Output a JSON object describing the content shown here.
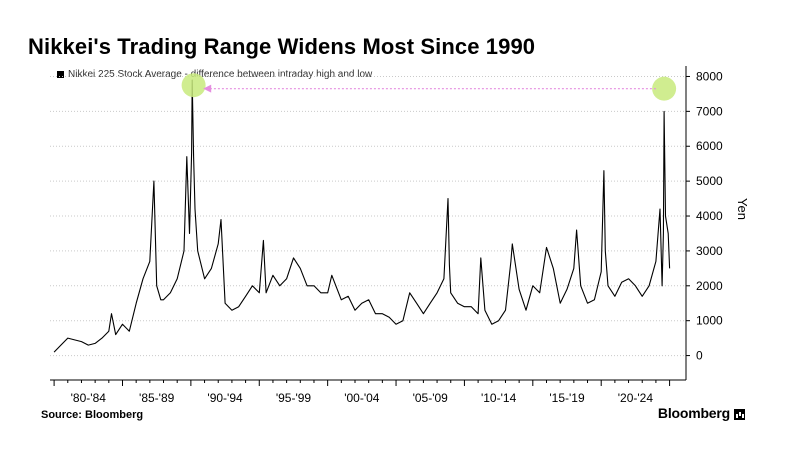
{
  "chart_data": {
    "type": "line",
    "title": "Nikkei's Trading Range Widens Most Since 1990",
    "legend": "Nikkei 225 Stock Average - difference between intraday high and low",
    "ylabel": "Yen",
    "ylim": [
      -700,
      8300
    ],
    "xlim": [
      1979.7,
      2026.2
    ],
    "yticks": [
      0,
      1000,
      2000,
      3000,
      4000,
      5000,
      6000,
      7000,
      8000
    ],
    "xtick_labels": [
      "'80-'84",
      "'85-'89",
      "'90-'94",
      "'95-'99",
      "'00-'04",
      "'05-'09",
      "'10-'14",
      "'15-'19",
      "'20-'24"
    ],
    "grid": "horizontal dotted",
    "legend_position": "top-left",
    "series_color": "#000000",
    "highlight_color": "#c8ea7c",
    "arrow_color": "#e58ee0",
    "highlights": [
      {
        "x": 1990.2,
        "y": 7750
      },
      {
        "x": 2024.6,
        "y": 7650
      }
    ],
    "arrow": {
      "from": {
        "x": 2024.0,
        "y": 7650
      },
      "to": {
        "x": 1990.9,
        "y": 7650
      }
    },
    "series": [
      {
        "x": [
          1980.0,
          1980.5,
          1981.0,
          1981.5,
          1982.0,
          1982.5,
          1983.0,
          1983.5,
          1984.0,
          1984.2,
          1984.5,
          1985.0,
          1985.5,
          1986.0,
          1986.5,
          1987.0,
          1987.3,
          1987.5,
          1987.8,
          1988.0,
          1988.5,
          1989.0,
          1989.5,
          1989.7,
          1989.9,
          1990.05,
          1990.1,
          1990.2,
          1990.3,
          1990.5,
          1991.0,
          1991.5,
          1992.0,
          1992.2,
          1992.5,
          1993.0,
          1993.5,
          1994.0,
          1994.5,
          1995.0,
          1995.3,
          1995.5,
          1996.0,
          1996.5,
          1997.0,
          1997.5,
          1998.0,
          1998.5,
          1999.0,
          1999.5,
          2000.0,
          2000.3,
          2000.5,
          2001.0,
          2001.5,
          2002.0,
          2002.5,
          2003.0,
          2003.5,
          2004.0,
          2004.5,
          2005.0,
          2005.5,
          2006.0,
          2006.5,
          2007.0,
          2007.5,
          2008.0,
          2008.5,
          2008.8,
          2008.9,
          2009.0,
          2009.5,
          2010.0,
          2010.5,
          2011.0,
          2011.2,
          2011.5,
          2012.0,
          2012.5,
          2013.0,
          2013.4,
          2013.5,
          2014.0,
          2014.5,
          2015.0,
          2015.5,
          2016.0,
          2016.5,
          2017.0,
          2017.5,
          2018.0,
          2018.2,
          2018.5,
          2019.0,
          2019.5,
          2020.0,
          2020.2,
          2020.3,
          2020.5,
          2021.0,
          2021.5,
          2022.0,
          2022.5,
          2023.0,
          2023.5,
          2024.0,
          2024.3,
          2024.45,
          2024.55,
          2024.6,
          2024.7,
          2024.9,
          2025.0
        ],
        "values": [
          100,
          300,
          500,
          450,
          400,
          300,
          350,
          500,
          700,
          1200,
          600,
          900,
          700,
          1500,
          2200,
          2700,
          5000,
          2000,
          1600,
          1600,
          1800,
          2200,
          3000,
          5700,
          3500,
          5800,
          7900,
          5700,
          4200,
          3000,
          2200,
          2500,
          3200,
          3900,
          1500,
          1300,
          1400,
          1700,
          2000,
          1800,
          3300,
          1800,
          2300,
          2000,
          2200,
          2800,
          2500,
          2000,
          2000,
          1800,
          1800,
          2300,
          2100,
          1600,
          1700,
          1300,
          1500,
          1600,
          1200,
          1200,
          1100,
          900,
          1000,
          1800,
          1500,
          1200,
          1500,
          1800,
          2200,
          4500,
          2600,
          1800,
          1500,
          1400,
          1400,
          1200,
          2800,
          1300,
          900,
          1000,
          1300,
          2700,
          3200,
          1900,
          1300,
          2000,
          1800,
          3100,
          2500,
          1500,
          1900,
          2500,
          3600,
          2000,
          1500,
          1600,
          2400,
          5300,
          3000,
          2000,
          1700,
          2100,
          2200,
          2000,
          1700,
          2000,
          2700,
          4200,
          2000,
          3500,
          7000,
          4000,
          3500,
          2500
        ]
      }
    ]
  },
  "source": "Source: Bloomberg",
  "brand": "Bloomberg",
  "brand_icon": "bar-chart-icon"
}
